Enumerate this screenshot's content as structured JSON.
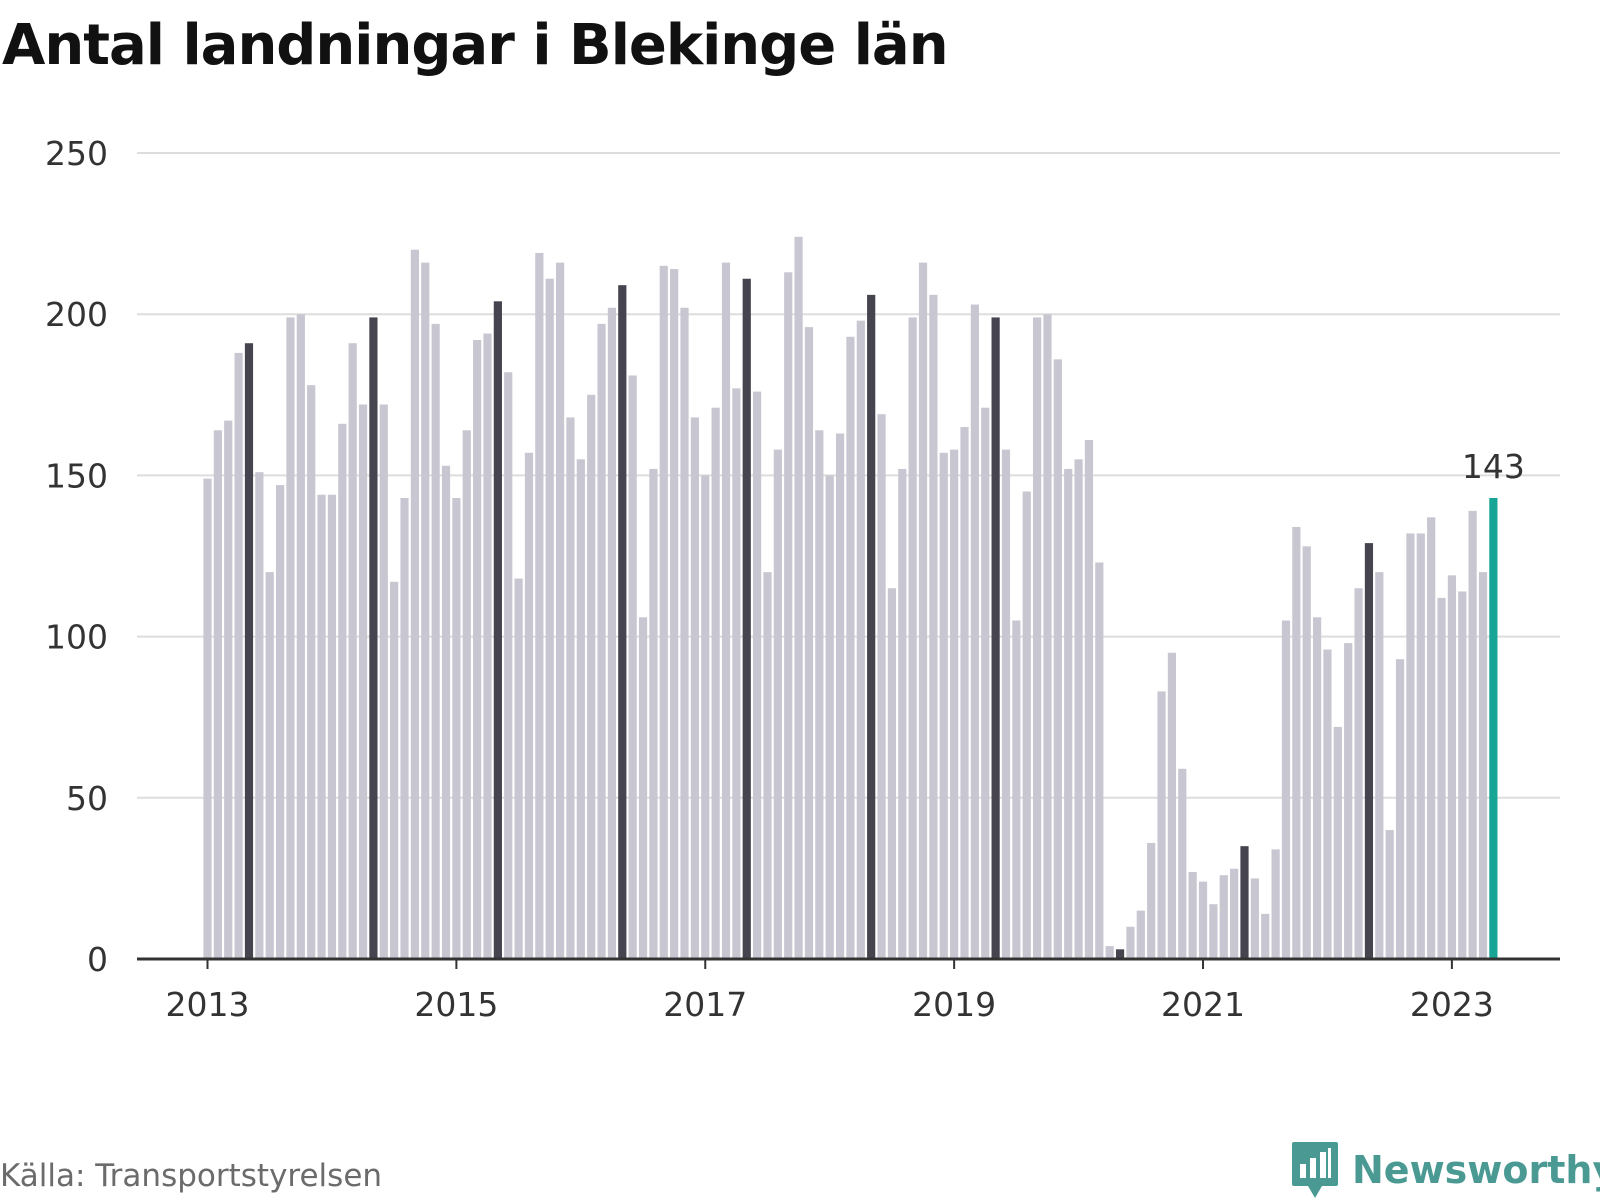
{
  "colors": {
    "bar": "#c8c7d1",
    "highlight": "#45444f",
    "latest": "#17a596",
    "grid": "#dddddd",
    "axis": "#333333",
    "brand": "#4a9a93"
  },
  "icons": {
    "brand_logo": "bar-chart-speech-bubble-icon"
  },
  "source": "Källa: Transportstyrelsen",
  "brand": "Newsworthy",
  "chart_data": {
    "type": "bar",
    "title": "Antal landningar i Blekinge län",
    "xlabel": "",
    "ylabel": "",
    "ylim": [
      0,
      250
    ],
    "yticks": [
      "0",
      "50",
      "100",
      "150",
      "200",
      "250"
    ],
    "xtick_labels": [
      "2013",
      "2015",
      "2017",
      "2019",
      "2021",
      "2023"
    ],
    "grid": "horizontal",
    "start": "2013-01",
    "highlight_month": 5,
    "latest_label": "143",
    "x": [
      "2013-01",
      "2013-02",
      "2013-03",
      "2013-04",
      "2013-05",
      "2013-06",
      "2013-07",
      "2013-08",
      "2013-09",
      "2013-10",
      "2013-11",
      "2013-12",
      "2014-01",
      "2014-02",
      "2014-03",
      "2014-04",
      "2014-05",
      "2014-06",
      "2014-07",
      "2014-08",
      "2014-09",
      "2014-10",
      "2014-11",
      "2014-12",
      "2015-01",
      "2015-02",
      "2015-03",
      "2015-04",
      "2015-05",
      "2015-06",
      "2015-07",
      "2015-08",
      "2015-09",
      "2015-10",
      "2015-11",
      "2015-12",
      "2016-01",
      "2016-02",
      "2016-03",
      "2016-04",
      "2016-05",
      "2016-06",
      "2016-07",
      "2016-08",
      "2016-09",
      "2016-10",
      "2016-11",
      "2016-12",
      "2017-01",
      "2017-02",
      "2017-03",
      "2017-04",
      "2017-05",
      "2017-06",
      "2017-07",
      "2017-08",
      "2017-09",
      "2017-10",
      "2017-11",
      "2017-12",
      "2018-01",
      "2018-02",
      "2018-03",
      "2018-04",
      "2018-05",
      "2018-06",
      "2018-07",
      "2018-08",
      "2018-09",
      "2018-10",
      "2018-11",
      "2018-12",
      "2019-01",
      "2019-02",
      "2019-03",
      "2019-04",
      "2019-05",
      "2019-06",
      "2019-07",
      "2019-08",
      "2019-09",
      "2019-10",
      "2019-11",
      "2019-12",
      "2020-01",
      "2020-02",
      "2020-03",
      "2020-04",
      "2020-05",
      "2020-06",
      "2020-07",
      "2020-08",
      "2020-09",
      "2020-10",
      "2020-11",
      "2020-12",
      "2021-01",
      "2021-02",
      "2021-03",
      "2021-04",
      "2021-05",
      "2021-06",
      "2021-07",
      "2021-08",
      "2021-09",
      "2021-10",
      "2021-11",
      "2021-12",
      "2022-01",
      "2022-02",
      "2022-03",
      "2022-04",
      "2022-05",
      "2022-06",
      "2022-07",
      "2022-08",
      "2022-09",
      "2022-10",
      "2022-11",
      "2022-12",
      "2023-01",
      "2023-02",
      "2023-03",
      "2023-04",
      "2023-05"
    ],
    "values": [
      149,
      164,
      167,
      188,
      191,
      151,
      120,
      147,
      199,
      200,
      178,
      144,
      144,
      166,
      191,
      172,
      199,
      172,
      117,
      143,
      220,
      216,
      197,
      153,
      143,
      164,
      192,
      194,
      204,
      182,
      118,
      157,
      219,
      211,
      216,
      168,
      155,
      175,
      197,
      202,
      209,
      181,
      106,
      152,
      215,
      214,
      202,
      168,
      150,
      171,
      216,
      177,
      211,
      176,
      120,
      158,
      213,
      224,
      196,
      164,
      150,
      163,
      193,
      198,
      206,
      169,
      115,
      152,
      199,
      216,
      206,
      157,
      158,
      165,
      203,
      171,
      199,
      158,
      105,
      145,
      199,
      200,
      186,
      152,
      155,
      161,
      123,
      4,
      3,
      10,
      15,
      36,
      83,
      95,
      59,
      27,
      24,
      17,
      26,
      28,
      35,
      25,
      14,
      34,
      105,
      134,
      128,
      106,
      96,
      72,
      98,
      115,
      129,
      120,
      40,
      93,
      132,
      132,
      137,
      112,
      119,
      114,
      139,
      120,
      143
    ]
  }
}
